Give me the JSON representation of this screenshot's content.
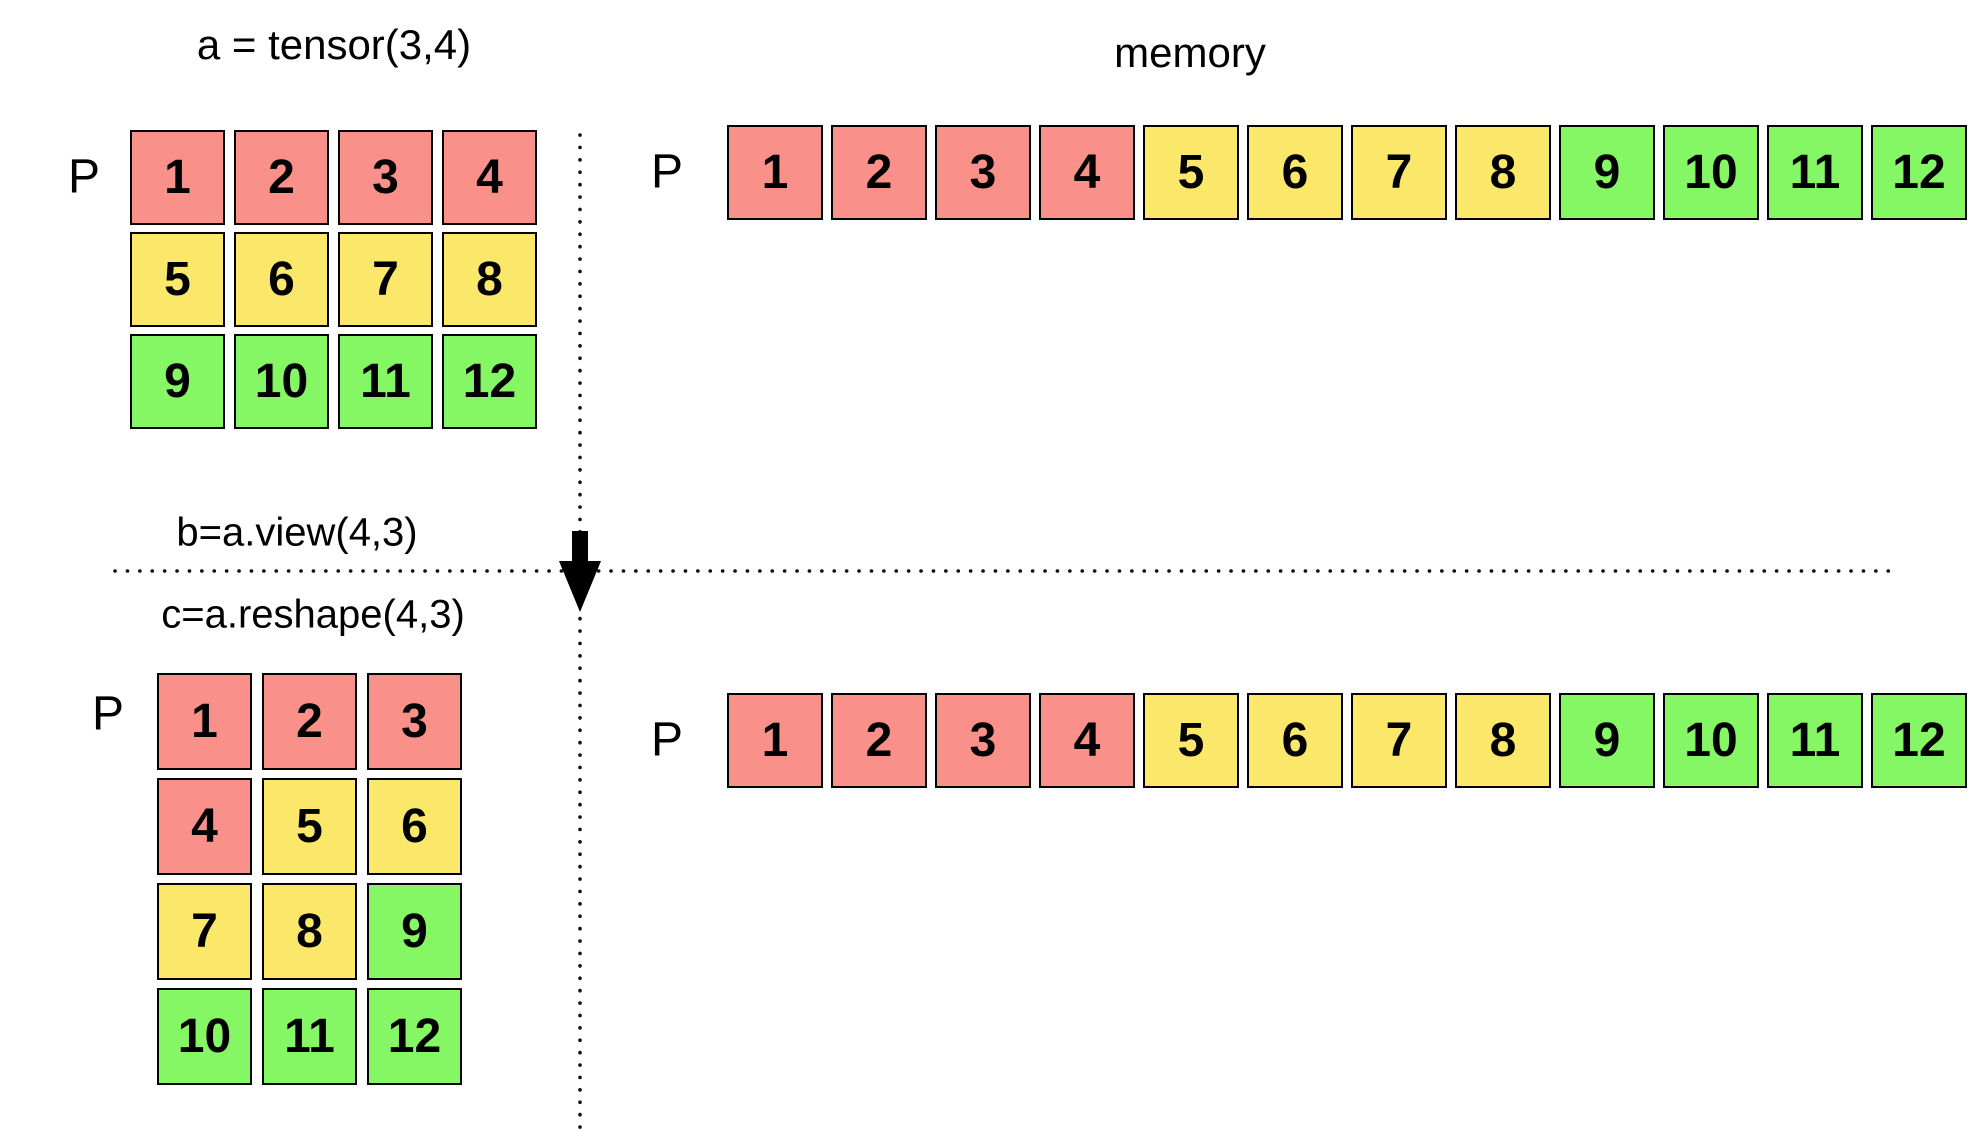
{
  "labels": {
    "tensor_a": "a = tensor(3,4)",
    "memory": "memory",
    "view_b": "b=a.view(4,3)",
    "reshape_c": "c=a.reshape(4,3)",
    "pointer": "P"
  },
  "colors": {
    "red": "#F9918A",
    "yellow": "#FBE86A",
    "green": "#85F765",
    "border": "#000000",
    "line": "#111111"
  },
  "grid_a": {
    "rows": 3,
    "cols": 4,
    "values": [
      [
        "1",
        "2",
        "3",
        "4"
      ],
      [
        "5",
        "6",
        "7",
        "8"
      ],
      [
        "9",
        "10",
        "11",
        "12"
      ]
    ],
    "cell_colors": [
      [
        "red",
        "red",
        "red",
        "red"
      ],
      [
        "yellow",
        "yellow",
        "yellow",
        "yellow"
      ],
      [
        "green",
        "green",
        "green",
        "green"
      ]
    ]
  },
  "grid_c": {
    "rows": 4,
    "cols": 3,
    "values": [
      [
        "1",
        "2",
        "3"
      ],
      [
        "4",
        "5",
        "6"
      ],
      [
        "7",
        "8",
        "9"
      ],
      [
        "10",
        "11",
        "12"
      ]
    ],
    "cell_colors": [
      [
        "red",
        "red",
        "red"
      ],
      [
        "red",
        "yellow",
        "yellow"
      ],
      [
        "yellow",
        "yellow",
        "green"
      ],
      [
        "green",
        "green",
        "green"
      ]
    ]
  },
  "memory_row": {
    "values": [
      "1",
      "2",
      "3",
      "4",
      "5",
      "6",
      "7",
      "8",
      "9",
      "10",
      "11",
      "12"
    ],
    "cell_colors": [
      "red",
      "red",
      "red",
      "red",
      "yellow",
      "yellow",
      "yellow",
      "yellow",
      "green",
      "green",
      "green",
      "green"
    ]
  }
}
